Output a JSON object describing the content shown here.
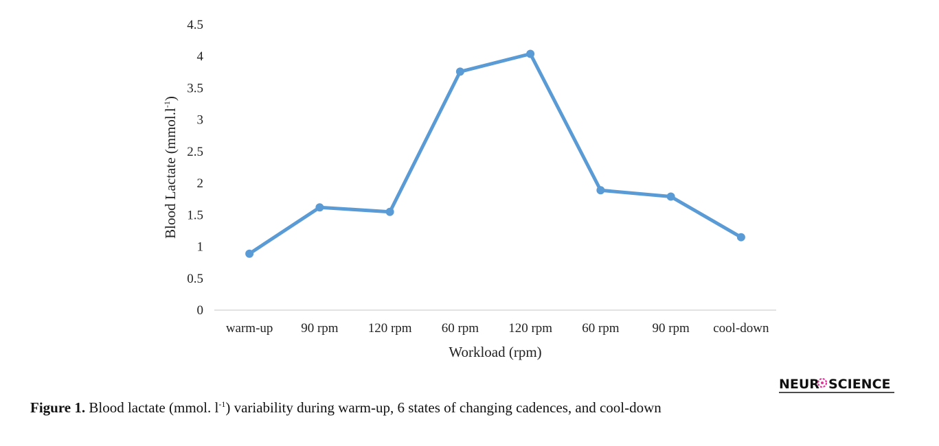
{
  "chart_data": {
    "type": "line",
    "categories": [
      "warm-up",
      "90 rpm",
      "120 rpm",
      "60 rpm",
      "120 rpm",
      "60 rpm",
      "90 rpm",
      "cool-down"
    ],
    "series": [
      {
        "values": [
          0.89,
          1.62,
          1.55,
          3.76,
          4.04,
          1.89,
          1.79,
          1.15
        ],
        "color": "#5b9bd5"
      }
    ],
    "xlabel": "Workload (rpm)",
    "ylabel_main": "Blood Lactate (mmol.l",
    "ylabel_sup": "-1",
    "ylabel_end": ")",
    "ylim": [
      0,
      4.5
    ],
    "yticks": [
      "0",
      "0.5",
      "1",
      "1.5",
      "2",
      "2.5",
      "3",
      "3.5",
      "4",
      "4.5"
    ],
    "grid": false,
    "legend": "none"
  },
  "logo": {
    "left": "NEUR",
    "right": "SCIENCE",
    "accent_color": "#e0389a"
  },
  "caption": {
    "label": "Figure 1.",
    "text_before": " Blood lactate (mmol. l",
    "sup": "-1",
    "text_after": ") variability during warm-up, 6 states of changing cadences, and cool-down"
  }
}
